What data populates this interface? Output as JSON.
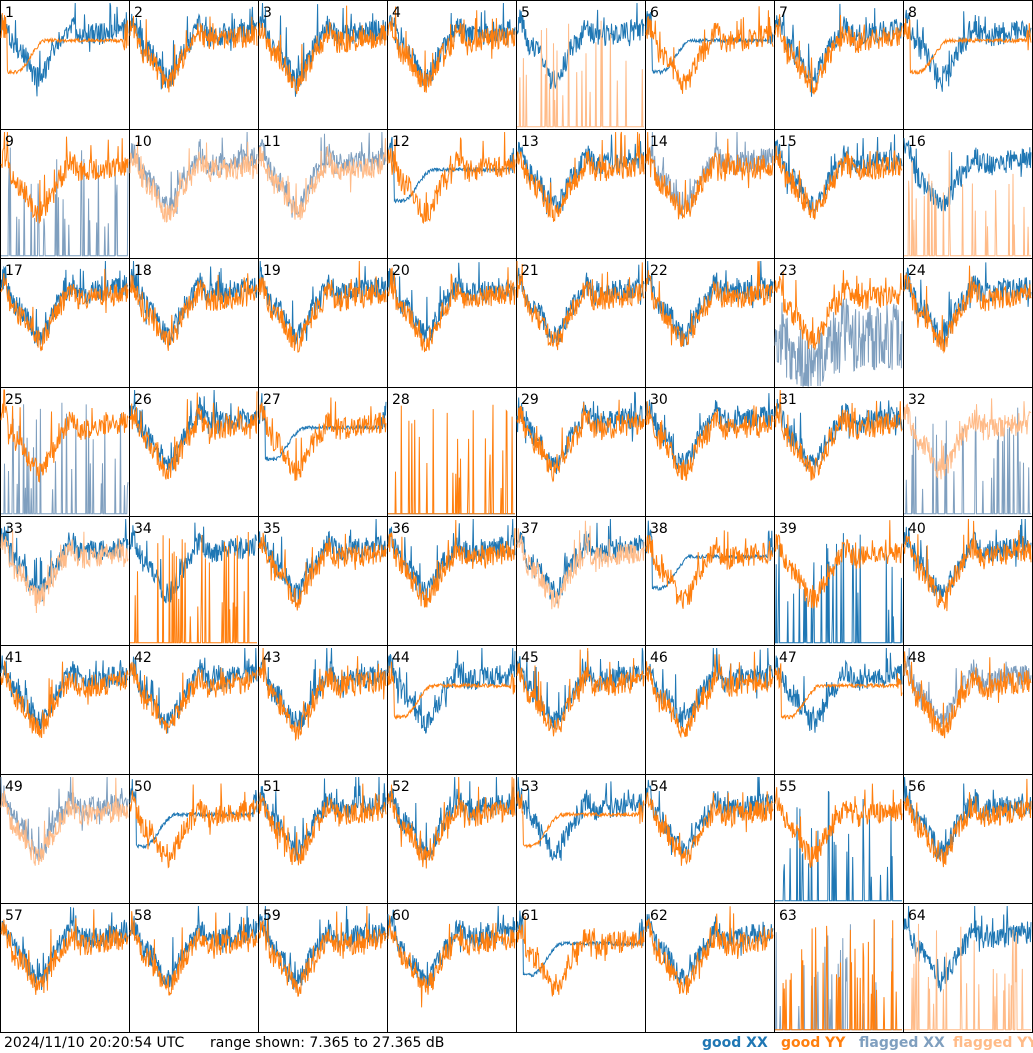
{
  "footer": {
    "timestamp": "2024/11/10 20:20:54 UTC",
    "range_text": "range shown: 7.365 to 27.365 dB"
  },
  "legend": [
    {
      "label": "good XX",
      "color": "#1f77b4"
    },
    {
      "label": "good YY",
      "color": "#ff7f0e"
    },
    {
      "label": "flagged XX",
      "color": "#7f9fbf"
    },
    {
      "label": "flagged YY",
      "color": "#ffbb88"
    }
  ],
  "chart_data": {
    "type": "line",
    "grid_layout": [
      8,
      8
    ],
    "ylim": [
      7.365,
      27.365
    ],
    "yunit": "dB",
    "series_styles": {
      "good_xx": "#1f77b4",
      "good_yy": "#ff7f0e",
      "flagged_xx": "#7f9fbf",
      "flagged_yy": "#ffbb88"
    },
    "panels": [
      {
        "label": "1",
        "xx": "good_xx",
        "yy": "good_yy",
        "xxKind": "normal",
        "yyKind": "smooth"
      },
      {
        "label": "2",
        "xx": "good_xx",
        "yy": "good_yy",
        "xxKind": "normal",
        "yyKind": "normal"
      },
      {
        "label": "3",
        "xx": "good_xx",
        "yy": "good_yy",
        "xxKind": "normal",
        "yyKind": "normal"
      },
      {
        "label": "4",
        "xx": "good_xx",
        "yy": "good_yy",
        "xxKind": "normal",
        "yyKind": "normal"
      },
      {
        "label": "5",
        "xx": "good_xx",
        "yy": "flagged_yy",
        "xxKind": "normal",
        "yyKind": "spiky"
      },
      {
        "label": "6",
        "xx": "good_xx",
        "yy": "good_yy",
        "xxKind": "smooth",
        "yyKind": "normal"
      },
      {
        "label": "7",
        "xx": "good_xx",
        "yy": "good_yy",
        "xxKind": "normal",
        "yyKind": "normal"
      },
      {
        "label": "8",
        "xx": "good_xx",
        "yy": "good_yy",
        "xxKind": "normal",
        "yyKind": "smooth"
      },
      {
        "label": "9",
        "xx": "flagged_xx",
        "yy": "good_yy",
        "xxKind": "spiky",
        "yyKind": "normal"
      },
      {
        "label": "10",
        "xx": "flagged_xx",
        "yy": "flagged_yy",
        "xxKind": "normal",
        "yyKind": "normal"
      },
      {
        "label": "11",
        "xx": "flagged_xx",
        "yy": "flagged_yy",
        "xxKind": "normal",
        "yyKind": "normal"
      },
      {
        "label": "12",
        "xx": "good_xx",
        "yy": "good_yy",
        "xxKind": "smooth",
        "yyKind": "normal"
      },
      {
        "label": "13",
        "xx": "good_xx",
        "yy": "good_yy",
        "xxKind": "normal",
        "yyKind": "normal"
      },
      {
        "label": "14",
        "xx": "flagged_xx",
        "yy": "good_yy",
        "xxKind": "normal",
        "yyKind": "normal"
      },
      {
        "label": "15",
        "xx": "good_xx",
        "yy": "good_yy",
        "xxKind": "normal",
        "yyKind": "normal"
      },
      {
        "label": "16",
        "xx": "good_xx",
        "yy": "flagged_yy",
        "xxKind": "normal",
        "yyKind": "spiky"
      },
      {
        "label": "17",
        "xx": "good_xx",
        "yy": "good_yy",
        "xxKind": "normal",
        "yyKind": "normal"
      },
      {
        "label": "18",
        "xx": "good_xx",
        "yy": "good_yy",
        "xxKind": "normal",
        "yyKind": "normal"
      },
      {
        "label": "19",
        "xx": "good_xx",
        "yy": "good_yy",
        "xxKind": "normal",
        "yyKind": "normal"
      },
      {
        "label": "20",
        "xx": "good_xx",
        "yy": "good_yy",
        "xxKind": "normal",
        "yyKind": "normal"
      },
      {
        "label": "21",
        "xx": "good_xx",
        "yy": "good_yy",
        "xxKind": "normal",
        "yyKind": "normal"
      },
      {
        "label": "22",
        "xx": "good_xx",
        "yy": "good_yy",
        "xxKind": "normal",
        "yyKind": "normal"
      },
      {
        "label": "23",
        "xx": "flagged_xx",
        "yy": "good_yy",
        "xxKind": "noisy",
        "yyKind": "normal"
      },
      {
        "label": "24",
        "xx": "good_xx",
        "yy": "good_yy",
        "xxKind": "normal",
        "yyKind": "normal"
      },
      {
        "label": "25",
        "xx": "flagged_xx",
        "yy": "good_yy",
        "xxKind": "spiky",
        "yyKind": "normal"
      },
      {
        "label": "26",
        "xx": "good_xx",
        "yy": "good_yy",
        "xxKind": "normal",
        "yyKind": "normal"
      },
      {
        "label": "27",
        "xx": "good_xx",
        "yy": "good_yy",
        "xxKind": "smooth",
        "yyKind": "normal"
      },
      {
        "label": "28",
        "xx": "good_xx",
        "yy": "good_yy",
        "xxKind": "flat",
        "yyKind": "spiky"
      },
      {
        "label": "29",
        "xx": "good_xx",
        "yy": "good_yy",
        "xxKind": "normal",
        "yyKind": "normal"
      },
      {
        "label": "30",
        "xx": "good_xx",
        "yy": "good_yy",
        "xxKind": "normal",
        "yyKind": "normal"
      },
      {
        "label": "31",
        "xx": "good_xx",
        "yy": "good_yy",
        "xxKind": "normal",
        "yyKind": "normal"
      },
      {
        "label": "32",
        "xx": "flagged_xx",
        "yy": "flagged_yy",
        "xxKind": "spiky",
        "yyKind": "normal"
      },
      {
        "label": "33",
        "xx": "good_xx",
        "yy": "flagged_yy",
        "xxKind": "normal",
        "yyKind": "normal"
      },
      {
        "label": "34",
        "xx": "good_xx",
        "yy": "good_yy",
        "xxKind": "normal",
        "yyKind": "spiky"
      },
      {
        "label": "35",
        "xx": "good_xx",
        "yy": "good_yy",
        "xxKind": "normal",
        "yyKind": "normal"
      },
      {
        "label": "36",
        "xx": "good_xx",
        "yy": "good_yy",
        "xxKind": "normal",
        "yyKind": "normal"
      },
      {
        "label": "37",
        "xx": "good_xx",
        "yy": "flagged_yy",
        "xxKind": "normal",
        "yyKind": "normal"
      },
      {
        "label": "38",
        "xx": "good_xx",
        "yy": "good_yy",
        "xxKind": "smooth",
        "yyKind": "normal"
      },
      {
        "label": "39",
        "xx": "good_xx",
        "yy": "good_yy",
        "xxKind": "spiky",
        "yyKind": "normal"
      },
      {
        "label": "40",
        "xx": "good_xx",
        "yy": "good_yy",
        "xxKind": "normal",
        "yyKind": "normal"
      },
      {
        "label": "41",
        "xx": "good_xx",
        "yy": "good_yy",
        "xxKind": "normal",
        "yyKind": "normal"
      },
      {
        "label": "42",
        "xx": "good_xx",
        "yy": "good_yy",
        "xxKind": "normal",
        "yyKind": "normal"
      },
      {
        "label": "43",
        "xx": "good_xx",
        "yy": "good_yy",
        "xxKind": "normal",
        "yyKind": "normal"
      },
      {
        "label": "44",
        "xx": "good_xx",
        "yy": "good_yy",
        "xxKind": "normal",
        "yyKind": "smooth"
      },
      {
        "label": "45",
        "xx": "good_xx",
        "yy": "good_yy",
        "xxKind": "normal",
        "yyKind": "normal"
      },
      {
        "label": "46",
        "xx": "good_xx",
        "yy": "good_yy",
        "xxKind": "normal",
        "yyKind": "normal"
      },
      {
        "label": "47",
        "xx": "good_xx",
        "yy": "good_yy",
        "xxKind": "normal",
        "yyKind": "smooth"
      },
      {
        "label": "48",
        "xx": "flagged_xx",
        "yy": "good_yy",
        "xxKind": "normal",
        "yyKind": "normal"
      },
      {
        "label": "49",
        "xx": "flagged_xx",
        "yy": "flagged_yy",
        "xxKind": "normal",
        "yyKind": "normal"
      },
      {
        "label": "50",
        "xx": "good_xx",
        "yy": "good_yy",
        "xxKind": "smooth",
        "yyKind": "normal"
      },
      {
        "label": "51",
        "xx": "good_xx",
        "yy": "good_yy",
        "xxKind": "normal",
        "yyKind": "normal"
      },
      {
        "label": "52",
        "xx": "good_xx",
        "yy": "good_yy",
        "xxKind": "normal",
        "yyKind": "normal"
      },
      {
        "label": "53",
        "xx": "good_xx",
        "yy": "good_yy",
        "xxKind": "normal",
        "yyKind": "smooth"
      },
      {
        "label": "54",
        "xx": "good_xx",
        "yy": "good_yy",
        "xxKind": "normal",
        "yyKind": "normal"
      },
      {
        "label": "55",
        "xx": "good_xx",
        "yy": "good_yy",
        "xxKind": "spiky",
        "yyKind": "normal"
      },
      {
        "label": "56",
        "xx": "good_xx",
        "yy": "good_yy",
        "xxKind": "normal",
        "yyKind": "normal"
      },
      {
        "label": "57",
        "xx": "good_xx",
        "yy": "good_yy",
        "xxKind": "normal",
        "yyKind": "normal"
      },
      {
        "label": "58",
        "xx": "good_xx",
        "yy": "good_yy",
        "xxKind": "normal",
        "yyKind": "normal"
      },
      {
        "label": "59",
        "xx": "good_xx",
        "yy": "good_yy",
        "xxKind": "normal",
        "yyKind": "normal"
      },
      {
        "label": "60",
        "xx": "good_xx",
        "yy": "good_yy",
        "xxKind": "normal",
        "yyKind": "normal"
      },
      {
        "label": "61",
        "xx": "good_xx",
        "yy": "good_yy",
        "xxKind": "smooth",
        "yyKind": "normal"
      },
      {
        "label": "62",
        "xx": "good_xx",
        "yy": "good_yy",
        "xxKind": "normal",
        "yyKind": "normal"
      },
      {
        "label": "63",
        "xx": "flagged_xx",
        "yy": "good_yy",
        "xxKind": "spiky",
        "yyKind": "spiky"
      },
      {
        "label": "64",
        "xx": "good_xx",
        "yy": "flagged_yy",
        "xxKind": "normal",
        "yyKind": "spiky"
      }
    ]
  }
}
